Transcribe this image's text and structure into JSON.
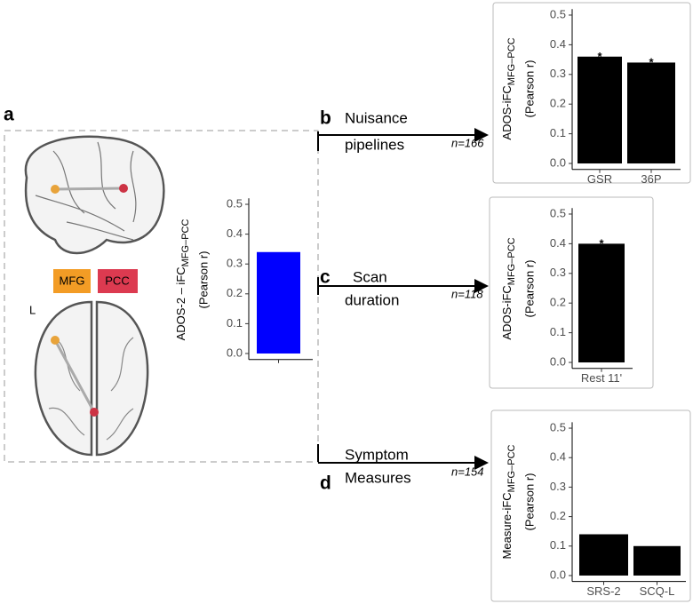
{
  "panels": {
    "a": "a",
    "b": "b",
    "c": "c",
    "d": "d",
    "mfg": "MFG",
    "pcc": "PCC",
    "hemisphere": "L",
    "b_label_1": "Nuisance",
    "b_label_2": "pipelines",
    "b_n": "n=166",
    "c_label_1": "Scan",
    "c_label_2": "duration",
    "c_n": "n=118",
    "d_label_1": "Symptom",
    "d_label_2": "Measures",
    "d_n": "n=154"
  },
  "chart_data": [
    {
      "type": "bar",
      "ylabel": "ADOS-2 – iFC",
      "ylabel_sub": "MFG–PCC",
      "ylabel_2": "(Pearson r)",
      "categories": [
        null
      ],
      "values": [
        0.34
      ],
      "color": "#0000ff",
      "ylim": [
        -0.02,
        0.52
      ],
      "yticks": [
        {
          "value": 0,
          "label": "0.0"
        },
        0.1,
        0.2,
        0.3,
        0.4,
        0.5
      ]
    },
    {
      "type": "bar",
      "ylabel": "ADOS-iFC",
      "ylabel_sub": "MFG–PCC",
      "ylabel_2": "(Pearson r)",
      "categories": [
        "GSR",
        "36P"
      ],
      "values": [
        0.36,
        0.34
      ],
      "value_annotations": [
        "*",
        "*"
      ],
      "color": "#000000",
      "ylim": [
        -0.02,
        0.52
      ],
      "yticks": [
        {
          "value": 0,
          "label": "0.0"
        },
        0.1,
        0.2,
        0.3,
        0.4,
        0.5
      ]
    },
    {
      "type": "bar",
      "ylabel": "ADOS-iFC",
      "ylabel_sub": "MFG–PCC",
      "ylabel_2": "(Pearson r)",
      "categories": [
        "Rest 11'"
      ],
      "values": [
        0.4
      ],
      "value_annotations": [
        "*"
      ],
      "color": "#000000",
      "ylim": [
        -0.02,
        0.52
      ],
      "yticks": [
        {
          "value": 0,
          "label": "0.0"
        },
        0.1,
        0.2,
        0.3,
        0.4,
        0.5
      ]
    },
    {
      "type": "bar",
      "ylabel": "Measure-iFC",
      "ylabel_sub": "MFG–PCC",
      "ylabel_2": "(Pearson r)",
      "categories": [
        "SRS-2",
        "SCQ-L"
      ],
      "values": [
        0.14,
        0.1
      ],
      "color": "#000000",
      "ylim": [
        -0.02,
        0.52
      ],
      "yticks": [
        {
          "value": 0,
          "label": "0.0"
        },
        0.1,
        0.2,
        0.3,
        0.4,
        0.5
      ]
    }
  ]
}
